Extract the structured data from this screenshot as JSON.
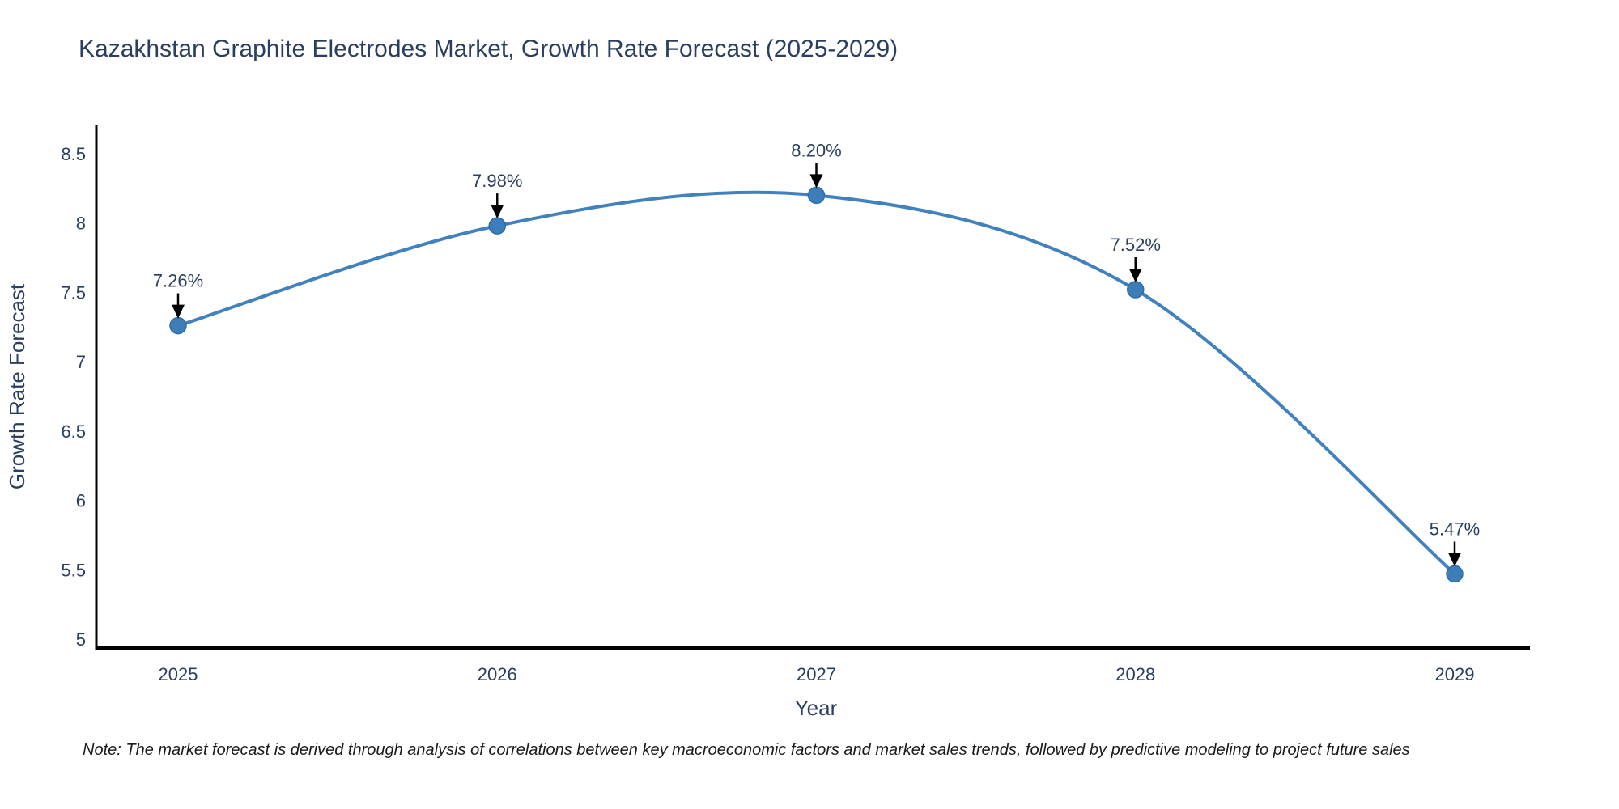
{
  "title": "Kazakhstan Graphite Electrodes Market, Growth Rate Forecast (2025-2029)",
  "note": "Note: The market forecast is derived through analysis of correlations between key macroeconomic factors and market sales trends, followed by predictive modeling to project future sales",
  "chart_data": {
    "type": "line",
    "title": "Kazakhstan Graphite Electrodes Market, Growth Rate Forecast (2025-2029)",
    "xlabel": "Year",
    "ylabel": "Growth Rate Forecast",
    "categories": [
      "2025",
      "2026",
      "2027",
      "2028",
      "2029"
    ],
    "series": [
      {
        "name": "Growth Rate Forecast",
        "values": [
          7.26,
          7.98,
          8.2,
          7.52,
          5.47
        ]
      }
    ],
    "point_labels": [
      "7.26%",
      "7.98%",
      "8.20%",
      "7.52%",
      "5.47%"
    ],
    "ylim": [
      5,
      8.5
    ],
    "y_ticks": [
      5,
      5.5,
      6,
      6.5,
      7,
      7.5,
      8,
      8.5
    ],
    "y_tick_labels": [
      "5",
      "5.5",
      "6",
      "6.5",
      "7",
      "7.5",
      "8",
      "8.5"
    ],
    "grid": false,
    "legend": "none",
    "line_shape": "spline",
    "colors": {
      "line": "#4181bd",
      "marker": "#3d7db8",
      "marker_edge": "#2f6da8",
      "axis": "#000000",
      "text": "#2a3f5f",
      "annotation_arrow": "#000000"
    }
  }
}
